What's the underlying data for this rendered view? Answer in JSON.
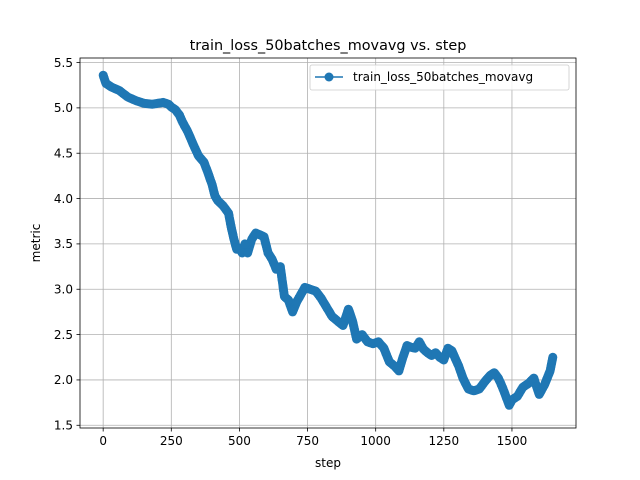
{
  "chart_data": {
    "type": "line",
    "title": "train_loss_50batches_movavg vs. step",
    "xlabel": "step",
    "ylabel": "metric",
    "xlim": [
      -85,
      1735
    ],
    "ylim": [
      1.47,
      5.55
    ],
    "xticks": [
      0,
      250,
      500,
      750,
      1000,
      1250,
      1500
    ],
    "xtick_labels": [
      "0",
      "250",
      "500",
      "750",
      "1000",
      "1250",
      "1500"
    ],
    "yticks": [
      1.5,
      2.0,
      2.5,
      3.0,
      3.5,
      4.0,
      4.5,
      5.0,
      5.5
    ],
    "ytick_labels": [
      "1.5",
      "2.0",
      "2.5",
      "3.0",
      "3.5",
      "4.0",
      "4.5",
      "5.0",
      "5.5"
    ],
    "grid": true,
    "legend_position": "top-right",
    "color": "#1f77b4",
    "marker": "circle",
    "series": [
      {
        "name": "train_loss_50batches_movavg",
        "x": [
          0,
          10,
          30,
          60,
          90,
          120,
          150,
          180,
          200,
          220,
          240,
          250,
          265,
          280,
          290,
          310,
          330,
          350,
          370,
          385,
          400,
          410,
          420,
          440,
          460,
          470,
          480,
          490,
          500,
          510,
          520,
          530,
          545,
          560,
          575,
          590,
          605,
          620,
          635,
          650,
          665,
          680,
          695,
          710,
          725,
          740,
          760,
          780,
          800,
          820,
          840,
          860,
          880,
          900,
          915,
          930,
          950,
          970,
          990,
          1010,
          1030,
          1050,
          1070,
          1085,
          1100,
          1115,
          1130,
          1145,
          1160,
          1175,
          1190,
          1205,
          1220,
          1235,
          1250,
          1265,
          1280,
          1290,
          1305,
          1320,
          1340,
          1360,
          1380,
          1400,
          1420,
          1435,
          1450,
          1465,
          1480,
          1490,
          1500,
          1520,
          1540,
          1560,
          1580,
          1600,
          1620,
          1640,
          1650
        ],
        "y": [
          5.36,
          5.27,
          5.23,
          5.19,
          5.12,
          5.08,
          5.05,
          5.04,
          5.05,
          5.06,
          5.04,
          5.01,
          4.98,
          4.92,
          4.85,
          4.74,
          4.6,
          4.47,
          4.4,
          4.28,
          4.15,
          4.03,
          3.98,
          3.92,
          3.84,
          3.68,
          3.55,
          3.44,
          3.45,
          3.4,
          3.5,
          3.4,
          3.55,
          3.62,
          3.6,
          3.58,
          3.4,
          3.33,
          3.22,
          3.25,
          2.92,
          2.88,
          2.75,
          2.86,
          2.94,
          3.02,
          3.0,
          2.98,
          2.9,
          2.8,
          2.7,
          2.65,
          2.6,
          2.78,
          2.65,
          2.45,
          2.5,
          2.42,
          2.4,
          2.42,
          2.35,
          2.2,
          2.15,
          2.1,
          2.25,
          2.38,
          2.36,
          2.35,
          2.42,
          2.34,
          2.3,
          2.27,
          2.3,
          2.25,
          2.22,
          2.35,
          2.32,
          2.25,
          2.15,
          2.02,
          1.9,
          1.88,
          1.9,
          1.98,
          2.05,
          2.08,
          2.02,
          1.92,
          1.8,
          1.72,
          1.78,
          1.82,
          1.92,
          1.96,
          2.02,
          1.84,
          1.95,
          2.1,
          2.25
        ]
      }
    ]
  }
}
